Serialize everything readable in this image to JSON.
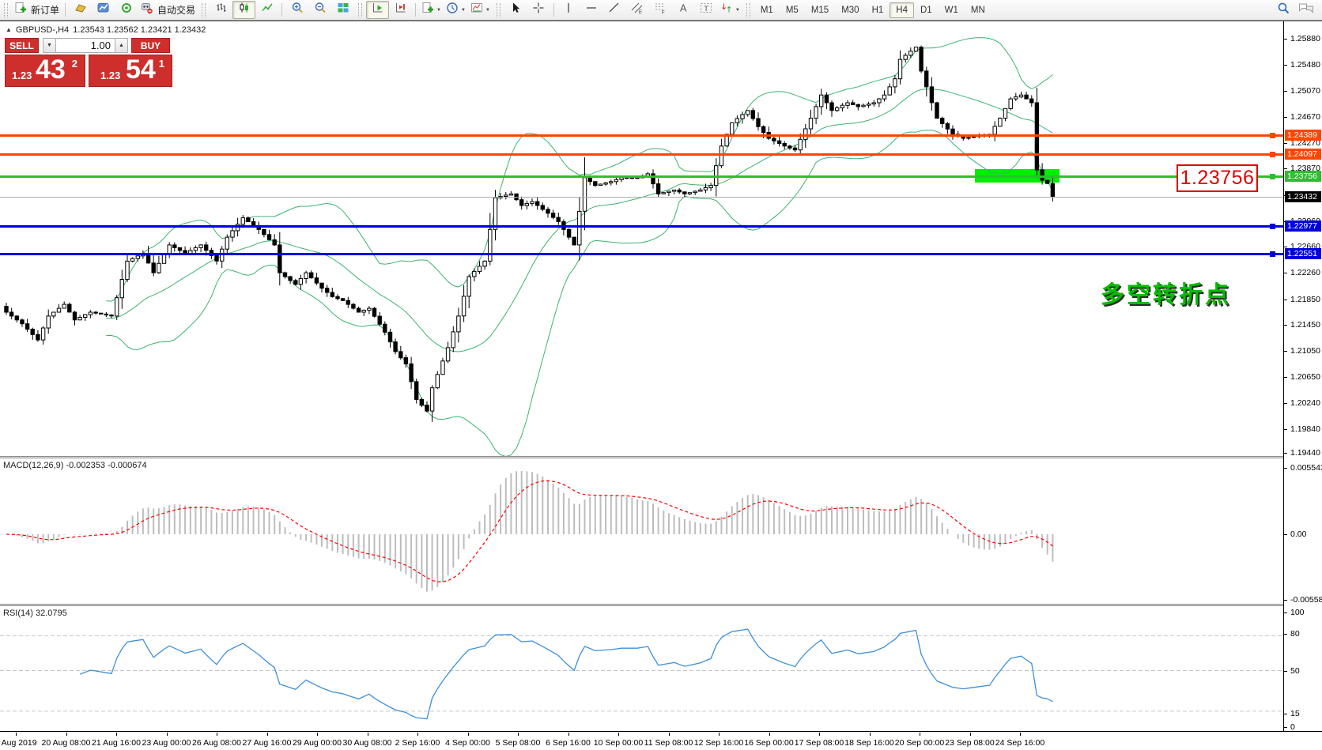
{
  "toolbar": {
    "new_order_label": "新订单",
    "autotrading_label": "自动交易",
    "timeframes": [
      "M1",
      "M5",
      "M15",
      "M30",
      "H1",
      "H4",
      "D1",
      "W1",
      "MN"
    ],
    "active_timeframe": "H4"
  },
  "chart_header": {
    "symbol_period": "GBPUSD-,H4",
    "ohlc": "1.23543 1.23562 1.23421 1.23432"
  },
  "one_click": {
    "sell_label": "SELL",
    "buy_label": "BUY",
    "volume": "1.00",
    "sell_price_small": "1.23",
    "sell_price_big": "43",
    "sell_price_sup": "2",
    "buy_price_small": "1.23",
    "buy_price_big": "54",
    "buy_price_sup": "1"
  },
  "levels": [
    {
      "price": "1.24389",
      "value": 1.24389,
      "color": "#FF4500",
      "thickness": 3,
      "type": "resistance"
    },
    {
      "price": "1.24097",
      "value": 1.24097,
      "color": "#FF4500",
      "thickness": 3,
      "type": "resistance"
    },
    {
      "price": "1.23756",
      "value": 1.23756,
      "color": "#2FBE2F",
      "thickness": 3,
      "type": "pivot"
    },
    {
      "price": "1.23432",
      "value": 1.23432,
      "color": "#ADADAD",
      "badge_color": "#000000",
      "thickness": 1,
      "type": "current-price"
    },
    {
      "price": "1.22977",
      "value": 1.22977,
      "color": "#0000DC",
      "thickness": 3,
      "type": "support"
    },
    {
      "price": "1.22551",
      "value": 1.22551,
      "color": "#0000DC",
      "thickness": 3,
      "type": "support"
    }
  ],
  "annotations": {
    "price_callout": "1.23756",
    "callout_color": "#E00000",
    "cn_note": "多空转折点",
    "cn_note_color": "#00BE00",
    "highlight_color": "#00EE00"
  },
  "price_axis": {
    "ticks": [
      "1.25880",
      "1.25480",
      "1.25070",
      "1.24670",
      "1.24270",
      "1.23870",
      "1.23460",
      "1.23060",
      "1.22660",
      "1.22260",
      "1.21850",
      "1.21450",
      "1.21050",
      "1.20650",
      "1.20240",
      "1.19840",
      "1.19440"
    ]
  },
  "macd": {
    "label": "MACD(12,26,9) -0.002353 -0.000674",
    "axis": [
      "0.005543",
      "0.00",
      "-0.005583"
    ]
  },
  "rsi": {
    "label": "RSI(14) 32.0795",
    "axis": [
      "100",
      "80",
      "50",
      "15",
      "0"
    ],
    "levels": [
      80,
      50,
      15
    ]
  },
  "time_axis": [
    "9 Aug 2019",
    "20 Aug 08:00",
    "21 Aug 16:00",
    "23 Aug 00:00",
    "26 Aug 08:00",
    "27 Aug 16:00",
    "29 Aug 00:00",
    "30 Aug 08:00",
    "2 Sep 16:00",
    "4 Sep 00:00",
    "5 Sep 08:00",
    "6 Sep 16:00",
    "10 Sep 00:00",
    "11 Sep 08:00",
    "12 Sep 16:00",
    "16 Sep 00:00",
    "17 Sep 08:00",
    "18 Sep 16:00",
    "20 Sep 00:00",
    "23 Sep 08:00",
    "24 Sep 16:00"
  ],
  "chart_data": {
    "type": "candlestick",
    "symbol": "GBPUSD",
    "period": "H4",
    "bars": 200,
    "last_close": 1.23432,
    "visible_price_range": [
      1.1944,
      1.2615
    ],
    "bollinger": {
      "period": 20,
      "deviation": 2,
      "color": "#3CB371"
    },
    "macd_params": {
      "fast": 12,
      "slow": 26,
      "signal": 9,
      "hist_color": "#BDBDBD",
      "signal_color": "#FF0000"
    },
    "rsi_params": {
      "period": 14,
      "color": "#3E8FD8"
    },
    "close_anchors": [
      [
        0,
        1.2165
      ],
      [
        3,
        1.2147
      ],
      [
        6,
        1.2122
      ],
      [
        8,
        1.2159
      ],
      [
        11,
        1.2177
      ],
      [
        13,
        1.2153
      ],
      [
        16,
        1.2165
      ],
      [
        20,
        1.2159
      ],
      [
        23,
        1.2244
      ],
      [
        26,
        1.2256
      ],
      [
        28,
        1.2226
      ],
      [
        31,
        1.2269
      ],
      [
        34,
        1.2256
      ],
      [
        37,
        1.2269
      ],
      [
        40,
        1.2244
      ],
      [
        42,
        1.2281
      ],
      [
        45,
        1.2311
      ],
      [
        48,
        1.2293
      ],
      [
        51,
        1.2269
      ],
      [
        52,
        1.2226
      ],
      [
        55,
        1.2208
      ],
      [
        57,
        1.2226
      ],
      [
        60,
        1.2202
      ],
      [
        62,
        1.2189
      ],
      [
        64,
        1.2183
      ],
      [
        67,
        1.2165
      ],
      [
        69,
        1.2171
      ],
      [
        72,
        1.2134
      ],
      [
        74,
        1.2104
      ],
      [
        76,
        1.2085
      ],
      [
        78,
        1.203
      ],
      [
        80,
        1.2012
      ],
      [
        81,
        1.2048
      ],
      [
        84,
        1.211
      ],
      [
        86,
        1.2159
      ],
      [
        88,
        1.222
      ],
      [
        91,
        1.2244
      ],
      [
        93,
        1.2342
      ],
      [
        96,
        1.2348
      ],
      [
        98,
        1.233
      ],
      [
        100,
        1.2336
      ],
      [
        103,
        1.2318
      ],
      [
        105,
        1.2305
      ],
      [
        108,
        1.2269
      ],
      [
        110,
        1.2373
      ],
      [
        112,
        1.2361
      ],
      [
        115,
        1.2367
      ],
      [
        117,
        1.2373
      ],
      [
        120,
        1.2373
      ],
      [
        122,
        1.2379
      ],
      [
        124,
        1.2348
      ],
      [
        127,
        1.2354
      ],
      [
        129,
        1.2348
      ],
      [
        132,
        1.2354
      ],
      [
        134,
        1.2361
      ],
      [
        136,
        1.2422
      ],
      [
        138,
        1.2458
      ],
      [
        141,
        1.2477
      ],
      [
        143,
        1.2452
      ],
      [
        145,
        1.2434
      ],
      [
        148,
        1.2422
      ],
      [
        150,
        1.2416
      ],
      [
        153,
        1.2465
      ],
      [
        155,
        1.2501
      ],
      [
        157,
        1.2477
      ],
      [
        160,
        1.2489
      ],
      [
        162,
        1.2483
      ],
      [
        165,
        1.2489
      ],
      [
        167,
        1.2501
      ],
      [
        169,
        1.2526
      ],
      [
        170,
        1.2556
      ],
      [
        173,
        1.2575
      ],
      [
        174,
        1.2538
      ],
      [
        176,
        1.2489
      ],
      [
        177,
        1.2465
      ],
      [
        180,
        1.244
      ],
      [
        182,
        1.2434
      ],
      [
        185,
        1.2438
      ],
      [
        187,
        1.244
      ],
      [
        189,
        1.2465
      ],
      [
        191,
        1.2495
      ],
      [
        193,
        1.2501
      ],
      [
        195,
        1.2489
      ],
      [
        196,
        1.2385
      ],
      [
        197,
        1.2369
      ],
      [
        198,
        1.2364
      ],
      [
        199,
        1.23432
      ]
    ]
  }
}
